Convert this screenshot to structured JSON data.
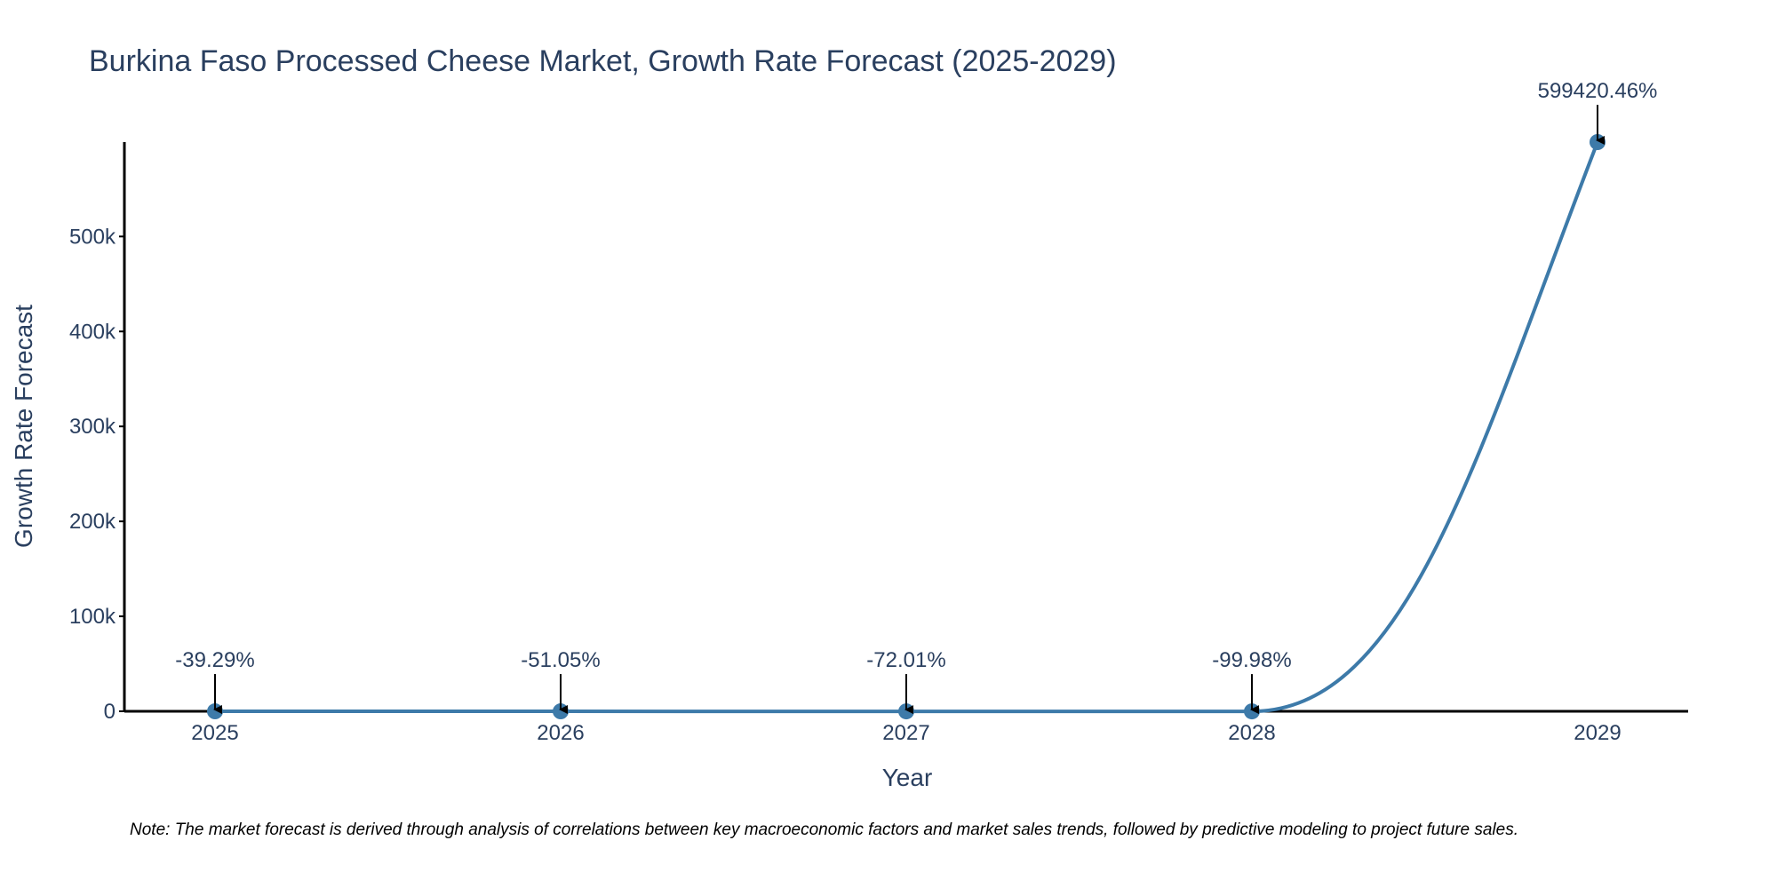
{
  "chart_data": {
    "type": "line",
    "title": "Burkina Faso Processed Cheese Market, Growth Rate Forecast (2025-2029)",
    "xlabel": "Year",
    "ylabel": "Growth Rate Forecast",
    "x": [
      "2025",
      "2026",
      "2027",
      "2028",
      "2029"
    ],
    "values": [
      -39.29,
      -51.05,
      -72.01,
      -99.98,
      599420.46
    ],
    "data_labels": [
      "-39.29%",
      "-51.05%",
      "-72.01%",
      "-99.98%",
      "599420.46%"
    ],
    "ylim": [
      0,
      600000
    ],
    "y_ticks": [
      0,
      100000,
      200000,
      300000,
      400000,
      500000
    ],
    "y_tick_labels": [
      "0",
      "100k",
      "200k",
      "300k",
      "400k",
      "500k"
    ],
    "grid": false,
    "line_color": "#3d7aa9",
    "axis_color": "#000000",
    "text_color": "#2a3f5f",
    "note": "Note: The market forecast is derived through analysis of correlations between key macroeconomic factors and market sales trends, followed by predictive modeling to project future sales."
  }
}
